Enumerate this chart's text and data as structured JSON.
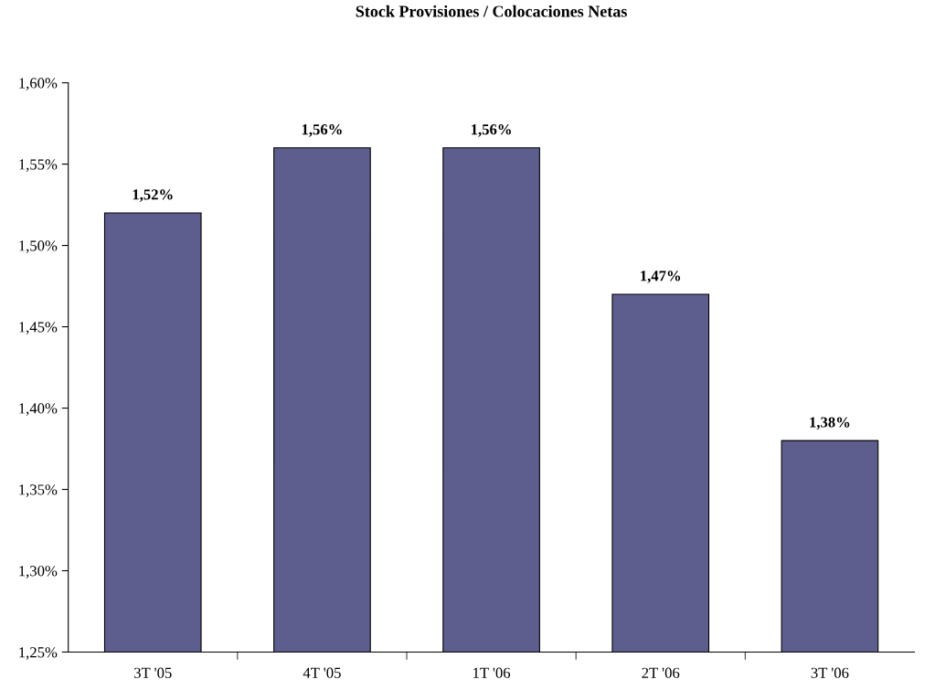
{
  "chart_data": {
    "type": "bar",
    "title": "Stock Provisiones / Colocaciones Netas",
    "categories": [
      "3T '05",
      "4T '05",
      "1T '06",
      "2T '06",
      "3T '06"
    ],
    "values": [
      1.52,
      1.56,
      1.56,
      1.47,
      1.38
    ],
    "value_labels": [
      "1,52%",
      "1,56%",
      "1,56%",
      "1,47%",
      "1,38%"
    ],
    "color": "#5e5e8e",
    "ylim": [
      1.25,
      1.6
    ],
    "yticks": [
      {
        "value": 1.25,
        "label": "1,25%"
      },
      {
        "value": 1.3,
        "label": "1,30%"
      },
      {
        "value": 1.35,
        "label": "1,35%"
      },
      {
        "value": 1.4,
        "label": "1,40%"
      },
      {
        "value": 1.45,
        "label": "1,45%"
      },
      {
        "value": 1.5,
        "label": "1,50%"
      },
      {
        "value": 1.55,
        "label": "1,55%"
      },
      {
        "value": 1.6,
        "label": "1,60%"
      }
    ],
    "grid": false
  }
}
